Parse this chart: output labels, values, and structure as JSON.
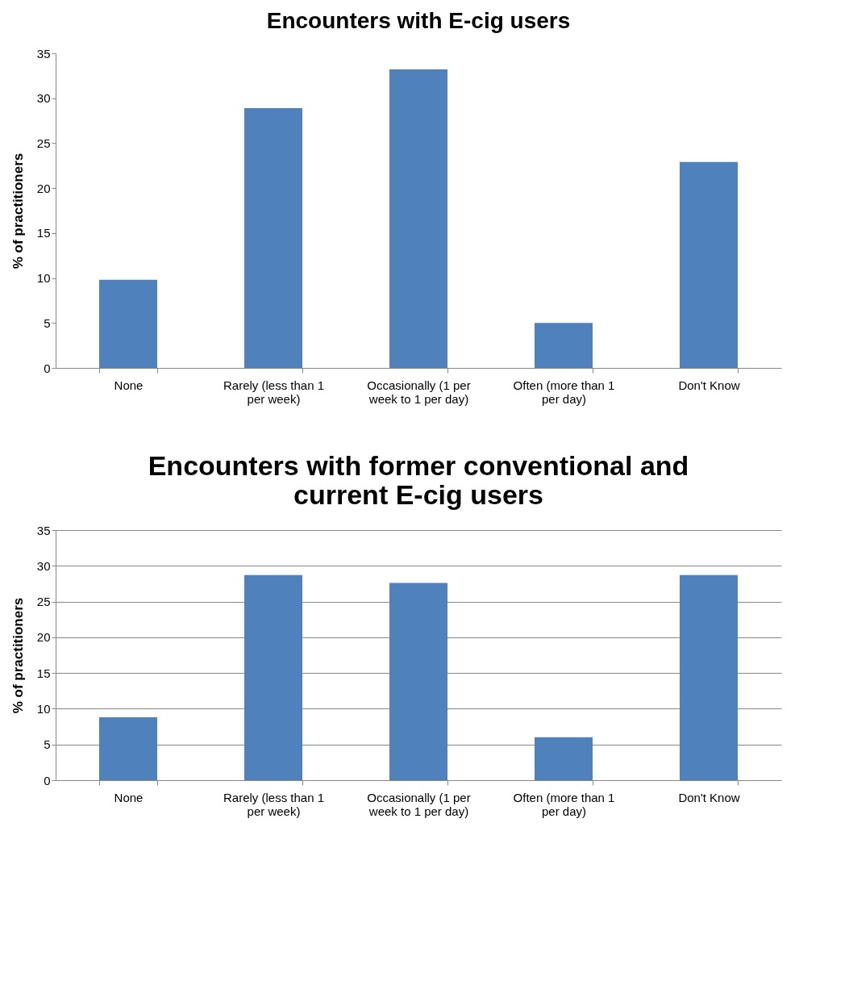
{
  "chart_data": [
    {
      "type": "bar",
      "title": "Encounters with E-cig users",
      "ylabel": "%  of practitioners",
      "categories": [
        "None",
        "Rarely (less than 1 per week)",
        "Occasionally (1 per week to 1 per day)",
        "Often (more than 1 per day)",
        "Don't Know"
      ],
      "values": [
        9.8,
        28.9,
        33.2,
        5.0,
        22.9
      ],
      "color": "#4f81bd",
      "ylim": [
        0,
        35
      ],
      "yticks": [
        0,
        5,
        10,
        15,
        20,
        25,
        30,
        35
      ],
      "grid": false
    },
    {
      "type": "bar",
      "title": "Encounters with former conventional and current E-cig users",
      "ylabel": "%  of practitioners",
      "categories": [
        "None",
        "Rarely (less than 1 per week)",
        "Occasionally (1 per week to 1 per day)",
        "Often (more than 1 per day)",
        "Don't Know"
      ],
      "values": [
        8.8,
        28.7,
        27.6,
        6.0,
        28.7
      ],
      "color": "#4f81bd",
      "ylim": [
        0,
        35
      ],
      "yticks": [
        0,
        5,
        10,
        15,
        20,
        25,
        30,
        35
      ],
      "grid": "y"
    }
  ]
}
